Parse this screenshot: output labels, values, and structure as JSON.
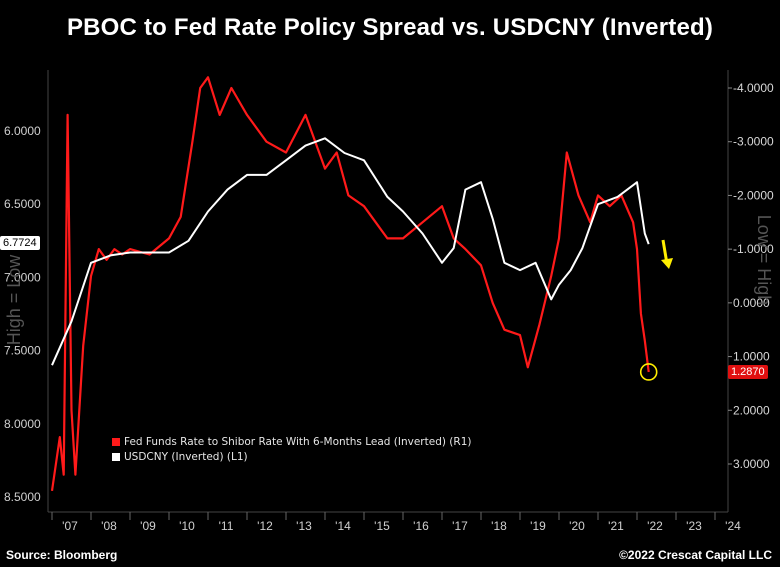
{
  "chart_data": {
    "type": "line",
    "title": "PBOC to Fed Rate Policy Spread vs. USDCNY (Inverted)",
    "x_ticks": [
      "'07",
      "'08",
      "'09",
      "'10",
      "'11",
      "'12",
      "'13",
      "'14",
      "'15",
      "'16",
      "'17",
      "'18",
      "'19",
      "'20",
      "'21",
      "'22",
      "'23",
      "'24"
    ],
    "left_axis": {
      "label": "High = Low",
      "ticks": [
        "6.0000",
        "6.5000",
        "7.0000",
        "7.5000",
        "8.0000",
        "8.5000"
      ],
      "tick_values": [
        6.0,
        6.5,
        7.0,
        7.5,
        8.0,
        8.5
      ],
      "inverted": true,
      "last_value_label": "6.7724"
    },
    "right_axis": {
      "label": "Low = High",
      "ticks": [
        "-4.0000",
        "-3.0000",
        "-2.0000",
        "-1.0000",
        "0.0000",
        "1.0000",
        "2.0000",
        "3.0000"
      ],
      "tick_values": [
        -4,
        -3,
        -2,
        -1,
        0,
        1,
        2,
        3
      ],
      "inverted": true,
      "last_value_label": "1.2870"
    },
    "legend_position": "bottom-left",
    "series": [
      {
        "name": "Fed Funds Rate to Shibor Rate With 6-Months Lead (Inverted) (R1)",
        "axis": "right",
        "color": "#ff1a1a",
        "x": [
          2007.0,
          2007.1,
          2007.2,
          2007.3,
          2007.4,
          2007.5,
          2007.6,
          2007.8,
          2008.0,
          2008.2,
          2008.4,
          2008.6,
          2008.8,
          2009.0,
          2009.5,
          2010.0,
          2010.3,
          2010.6,
          2010.8,
          2011.0,
          2011.3,
          2011.6,
          2012.0,
          2012.5,
          2013.0,
          2013.5,
          2014.0,
          2014.3,
          2014.6,
          2015.0,
          2015.3,
          2015.6,
          2016.0,
          2016.5,
          2017.0,
          2017.3,
          2017.6,
          2018.0,
          2018.3,
          2018.6,
          2019.0,
          2019.2,
          2019.5,
          2019.8,
          2020.0,
          2020.2,
          2020.5,
          2020.8,
          2021.0,
          2021.3,
          2021.6,
          2021.9,
          2022.0,
          2022.1,
          2022.2,
          2022.3
        ],
        "y": [
          3.5,
          3.0,
          2.5,
          3.2,
          -3.5,
          2.0,
          3.2,
          0.8,
          -0.5,
          -1.0,
          -0.8,
          -1.0,
          -0.9,
          -1.0,
          -0.9,
          -1.2,
          -1.6,
          -3.0,
          -4.0,
          -4.2,
          -3.5,
          -4.0,
          -3.5,
          -3.0,
          -2.8,
          -3.5,
          -2.5,
          -2.8,
          -2.0,
          -1.8,
          -1.5,
          -1.2,
          -1.2,
          -1.5,
          -1.8,
          -1.2,
          -1.0,
          -0.7,
          0.0,
          0.5,
          0.6,
          1.2,
          0.4,
          -0.5,
          -1.2,
          -2.8,
          -2.0,
          -1.5,
          -2.0,
          -1.8,
          -2.0,
          -1.5,
          -1.0,
          0.2,
          0.7,
          1.287
        ]
      },
      {
        "name": "USDCNY (Inverted) (L1)",
        "axis": "left",
        "color": "#ffffff",
        "x": [
          2007.0,
          2007.5,
          2008.0,
          2008.5,
          2009.0,
          2009.5,
          2010.0,
          2010.5,
          2011.0,
          2011.5,
          2012.0,
          2012.5,
          2013.0,
          2013.5,
          2014.0,
          2014.5,
          2015.0,
          2015.6,
          2016.0,
          2016.5,
          2017.0,
          2017.3,
          2017.6,
          2018.0,
          2018.3,
          2018.6,
          2019.0,
          2019.4,
          2019.8,
          2020.0,
          2020.3,
          2020.6,
          2021.0,
          2021.5,
          2022.0,
          2022.2,
          2022.3
        ],
        "y": [
          7.6,
          7.3,
          6.9,
          6.85,
          6.83,
          6.83,
          6.83,
          6.75,
          6.55,
          6.4,
          6.3,
          6.3,
          6.2,
          6.1,
          6.05,
          6.15,
          6.2,
          6.45,
          6.55,
          6.7,
          6.9,
          6.8,
          6.4,
          6.35,
          6.6,
          6.9,
          6.95,
          6.9,
          7.15,
          7.05,
          6.95,
          6.8,
          6.5,
          6.45,
          6.35,
          6.7,
          6.7724
        ]
      }
    ],
    "annotations": [
      {
        "type": "circle",
        "at": "last point of red series",
        "color": "#ffee00"
      },
      {
        "type": "arrow",
        "direction": "down",
        "color": "#ffee00"
      }
    ],
    "grid": false
  },
  "footer": {
    "source": "Source: Bloomberg",
    "copyright": "©2022 Crescat Capital LLC"
  }
}
